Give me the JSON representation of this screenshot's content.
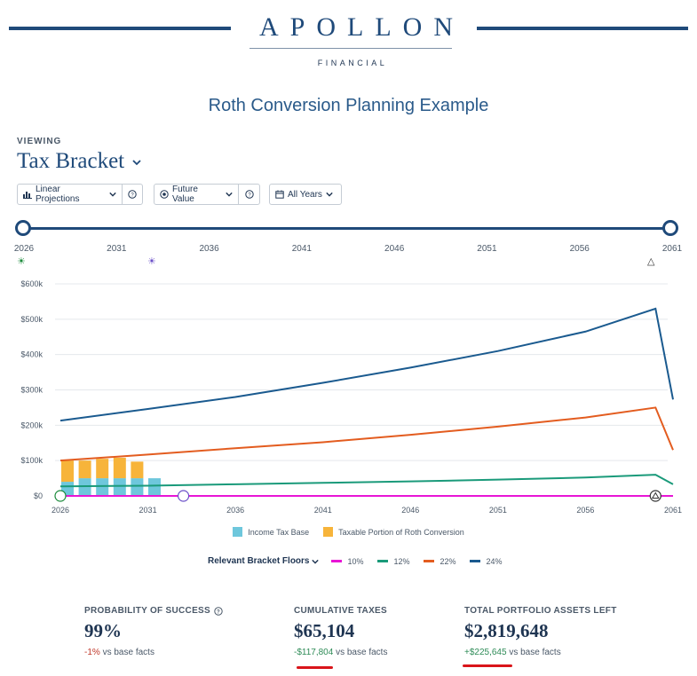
{
  "brand": {
    "name": "APOLLON",
    "subtitle": "FINANCIAL"
  },
  "page_title": "Roth Conversion Planning Example",
  "viewing": {
    "label": "VIEWING",
    "value": "Tax Bracket"
  },
  "controls": {
    "projection": "Linear Projections",
    "value_mode": "Future Value",
    "years": "All Years"
  },
  "timeline": {
    "ticks": [
      "2026",
      "2031",
      "2036",
      "2041",
      "2046",
      "2051",
      "2056",
      "2061"
    ]
  },
  "colors": {
    "bracket_10": "#e815d6",
    "bracket_12": "#1a9a7a",
    "bracket_22": "#e35c1f",
    "bracket_24": "#1a5a8f",
    "income": "#6ec7dc",
    "roth": "#f7b43a"
  },
  "chart_data": {
    "type": "bar+line",
    "xlim": [
      2026,
      2061
    ],
    "ylim": [
      0,
      600000
    ],
    "y_ticks": [
      "$0",
      "$100k",
      "$200k",
      "$300k",
      "$400k",
      "$500k",
      "$600k"
    ],
    "x_ticks": [
      "2026",
      "2031",
      "2036",
      "2041",
      "2046",
      "2051",
      "2056",
      "2061"
    ],
    "bars": {
      "years": [
        2026,
        2027,
        2028,
        2029,
        2030,
        2031
      ],
      "income_tax_base": [
        40000,
        50000,
        50000,
        50000,
        50000,
        50000
      ],
      "taxable_roth_conversion": [
        60000,
        50000,
        55000,
        58000,
        47000,
        0
      ]
    },
    "series": [
      {
        "name": "10%",
        "color": "#e815d6",
        "x": [
          2026,
          2060,
          2061
        ],
        "y": [
          0,
          0,
          0
        ]
      },
      {
        "name": "12%",
        "color": "#1a9a7a",
        "x": [
          2026,
          2031,
          2036,
          2041,
          2046,
          2051,
          2056,
          2060,
          2061
        ],
        "y": [
          27000,
          29000,
          33000,
          37000,
          41000,
          46000,
          52000,
          60000,
          33000
        ]
      },
      {
        "name": "22%",
        "color": "#e35c1f",
        "x": [
          2026,
          2031,
          2036,
          2041,
          2046,
          2051,
          2056,
          2060,
          2061
        ],
        "y": [
          100000,
          117000,
          135000,
          152000,
          173000,
          196000,
          222000,
          250000,
          130000
        ]
      },
      {
        "name": "24%",
        "color": "#1a5a8f",
        "x": [
          2026,
          2031,
          2036,
          2041,
          2046,
          2051,
          2056,
          2060,
          2061
        ],
        "y": [
          213000,
          246000,
          280000,
          320000,
          363000,
          410000,
          465000,
          530000,
          273000
        ]
      }
    ],
    "legend": [
      "Income Tax Base",
      "Taxable Portion of Roth Conversion"
    ]
  },
  "bracket_floors": {
    "label": "Relevant Bracket Floors",
    "items": [
      "10%",
      "12%",
      "22%",
      "24%"
    ]
  },
  "stats": [
    {
      "label": "PROBABILITY OF SUCCESS",
      "value": "99%",
      "delta": "-1%",
      "suffix": "vs base facts"
    },
    {
      "label": "CUMULATIVE TAXES",
      "value": "$65,104",
      "delta": "-$117,804",
      "suffix": "vs base facts"
    },
    {
      "label": "TOTAL PORTFOLIO ASSETS LEFT",
      "value": "$2,819,648",
      "delta": "+$225,645",
      "suffix": "vs base facts"
    }
  ]
}
